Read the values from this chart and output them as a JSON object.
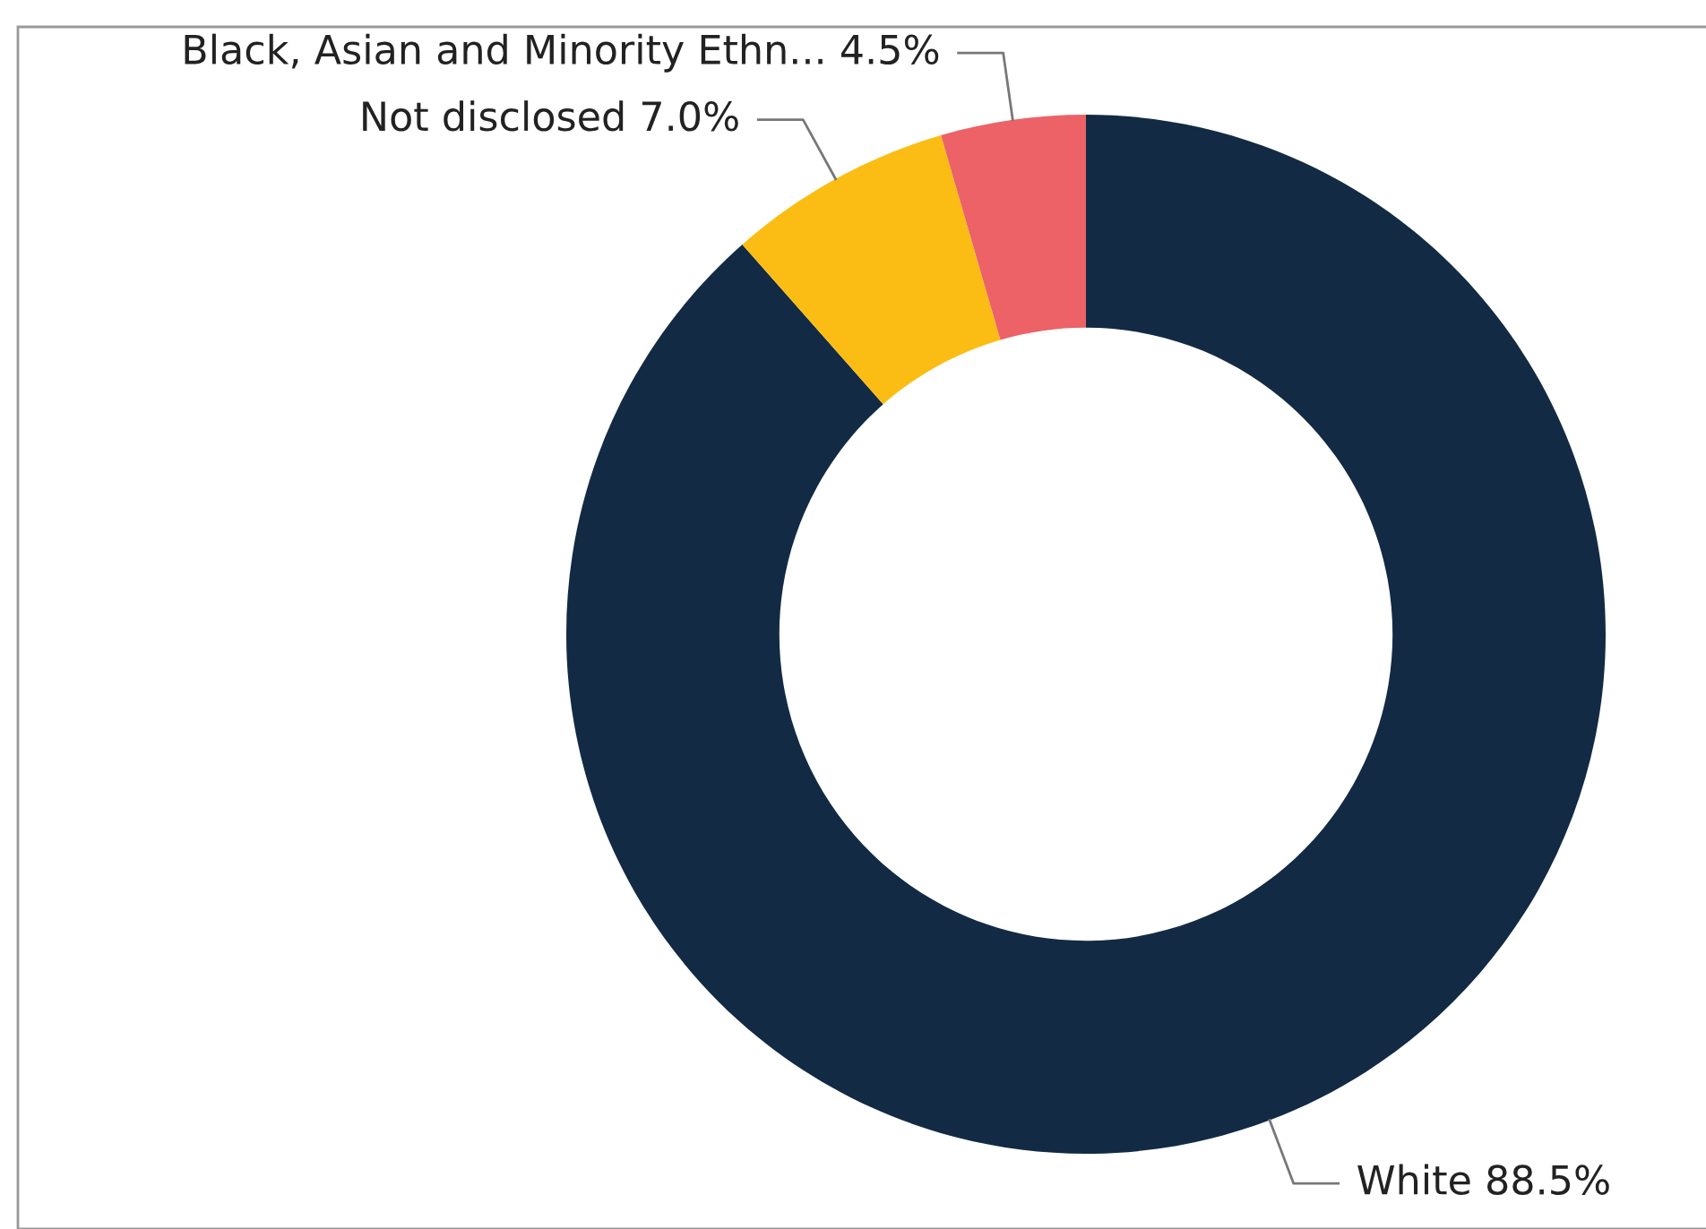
{
  "chart_data": {
    "type": "donut",
    "categories": [
      "White",
      "Not disclosed",
      "Black, Asian and Minority Ethn..."
    ],
    "values": [
      88.5,
      7.0,
      4.5
    ],
    "value_labels": [
      "88.5%",
      "7.0%",
      "4.5%"
    ],
    "colors": [
      "#132a44",
      "#fbbd14",
      "#ec6267"
    ]
  }
}
